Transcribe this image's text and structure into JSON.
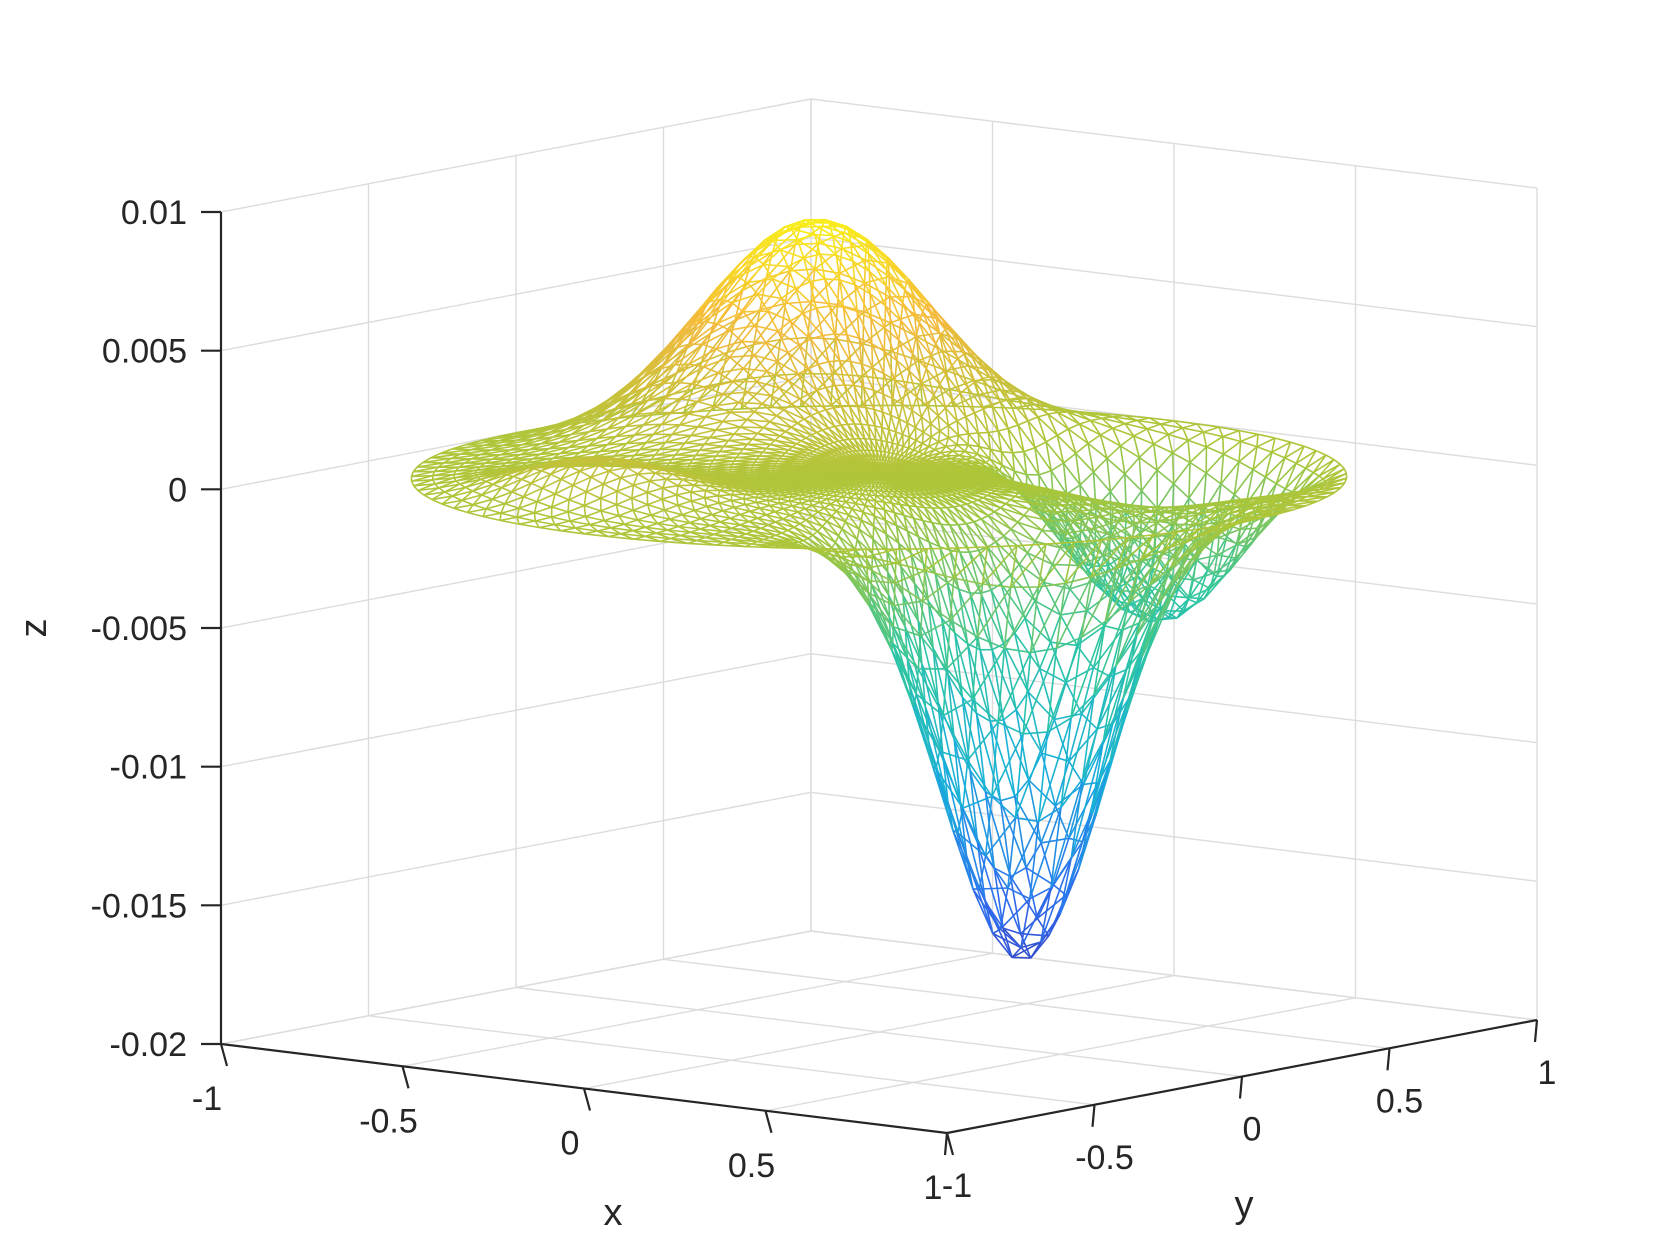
{
  "chart_data": {
    "type": "surface-mesh-3d",
    "title": "",
    "xlabel": "x",
    "ylabel": "y",
    "zlabel": "z",
    "xlim": [
      -1,
      1
    ],
    "ylim": [
      -1,
      1
    ],
    "zlim": [
      -0.02,
      0.01
    ],
    "x_ticks": [
      "-1",
      "-0.5",
      "0",
      "0.5",
      "1"
    ],
    "y_ticks": [
      "-1",
      "-0.5",
      "0",
      "0.5",
      "1"
    ],
    "z_ticks": [
      "-0.02",
      "-0.015",
      "-0.01",
      "-0.005",
      "0",
      "0.005",
      "0.01"
    ],
    "grid": true,
    "colormap": "parula",
    "colormap_stops": [
      "#3e26a8",
      "#2d6ff0",
      "#17b0d9",
      "#2fc6a0",
      "#a9c63a",
      "#f5ba3c",
      "#f9fb0e"
    ],
    "domain": "unit disk, triangulated mesh",
    "z_min_approx": -0.018,
    "z_max_approx": 0.0085,
    "features": [
      {
        "x": 0.65,
        "y": -0.3,
        "z": -0.018
      },
      {
        "x": -0.55,
        "y": 0.45,
        "z": 0.0085
      },
      {
        "x": 0.3,
        "y": 0.6,
        "z": -0.0065
      }
    ]
  }
}
